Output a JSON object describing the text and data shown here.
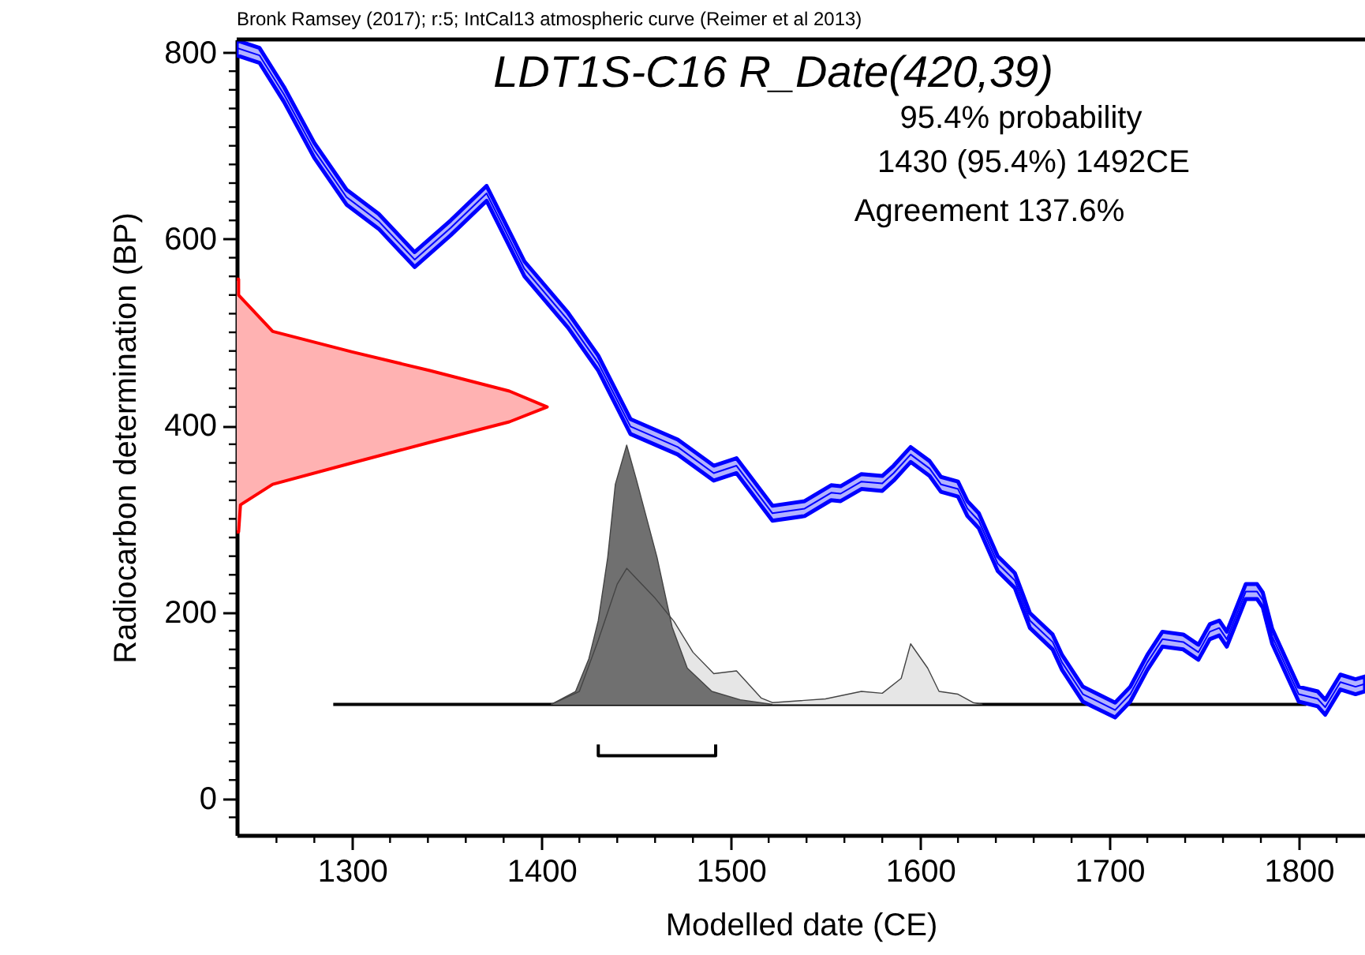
{
  "chart_data": {
    "type": "line",
    "title": "LDT1S-C16 R_Date(420,39)",
    "xlabel": "Modelled date (CE)",
    "ylabel": "Radiocarbon determination (BP)",
    "xlim": [
      1239,
      1835
    ],
    "ylim": [
      -39,
      814
    ],
    "xticks": [
      {
        "value": 1260,
        "label": null
      },
      {
        "value": 1280,
        "label": null
      },
      1300,
      {
        "value": 1320,
        "label": null
      },
      {
        "value": 1340,
        "label": null
      },
      {
        "value": 1360,
        "label": null
      },
      {
        "value": 1380,
        "label": null
      },
      1400,
      {
        "value": 1420,
        "label": null
      },
      {
        "value": 1440,
        "label": null
      },
      {
        "value": 1460,
        "label": null
      },
      {
        "value": 1480,
        "label": null
      },
      1500,
      {
        "value": 1520,
        "label": null
      },
      {
        "value": 1540,
        "label": null
      },
      {
        "value": 1560,
        "label": null
      },
      {
        "value": 1580,
        "label": null
      },
      1600,
      {
        "value": 1620,
        "label": null
      },
      {
        "value": 1640,
        "label": null
      },
      {
        "value": 1660,
        "label": null
      },
      {
        "value": 1680,
        "label": null
      },
      1700,
      {
        "value": 1720,
        "label": null
      },
      {
        "value": 1740,
        "label": null
      },
      {
        "value": 1760,
        "label": null
      },
      {
        "value": 1780,
        "label": null
      },
      1800,
      {
        "value": 1820,
        "label": null
      }
    ],
    "yticks": [
      {
        "value": -20,
        "label": null
      },
      0,
      {
        "value": 20,
        "label": null
      },
      {
        "value": 40,
        "label": null
      },
      {
        "value": 60,
        "label": null
      },
      {
        "value": 80,
        "label": null
      },
      {
        "value": 100,
        "label": null
      },
      {
        "value": 120,
        "label": null
      },
      {
        "value": 140,
        "label": null
      },
      {
        "value": 160,
        "label": null
      },
      {
        "value": 180,
        "label": null
      },
      200,
      {
        "value": 220,
        "label": null
      },
      {
        "value": 240,
        "label": null
      },
      {
        "value": 260,
        "label": null
      },
      {
        "value": 280,
        "label": null
      },
      {
        "value": 300,
        "label": null
      },
      {
        "value": 320,
        "label": null
      },
      {
        "value": 340,
        "label": null
      },
      {
        "value": 360,
        "label": null
      },
      {
        "value": 380,
        "label": null
      },
      400,
      {
        "value": 420,
        "label": null
      },
      {
        "value": 440,
        "label": null
      },
      {
        "value": 460,
        "label": null
      },
      {
        "value": 480,
        "label": null
      },
      {
        "value": 500,
        "label": null
      },
      {
        "value": 520,
        "label": null
      },
      {
        "value": 540,
        "label": null
      },
      {
        "value": 560,
        "label": null
      },
      {
        "value": 580,
        "label": null
      },
      600,
      {
        "value": 620,
        "label": null
      },
      {
        "value": 640,
        "label": null
      },
      {
        "value": 660,
        "label": null
      },
      {
        "value": 680,
        "label": null
      },
      {
        "value": 700,
        "label": null
      },
      {
        "value": 720,
        "label": null
      },
      {
        "value": 740,
        "label": null
      },
      {
        "value": 760,
        "label": null
      },
      {
        "value": 780,
        "label": null
      },
      800
    ],
    "grid": false,
    "annotations": [
      "Bronk Ramsey (2017); r:5; IntCal13 atmospheric curve (Reimer et al 2013)",
      "95.4% probability",
      "1430 (95.4%) 1492CE",
      "Agreement 137.6%"
    ],
    "series": [
      {
        "color": "#000000",
        "x": [
          1290,
          1804
        ],
        "values": [
          101,
          101
        ]
      },
      {
        "type": "area",
        "color": "#e6e6e6",
        "x": [
          1405,
          1420,
          1430,
          1440,
          1445,
          1452,
          1460,
          1470,
          1480,
          1491,
          1503,
          1516,
          1522,
          1550,
          1569,
          1580,
          1590,
          1595,
          1604,
          1610,
          1620,
          1628,
          1633
        ],
        "values": [
          101,
          115,
          170,
          230,
          247,
          232,
          215,
          190,
          157,
          134,
          137,
          108,
          103,
          107,
          115,
          113,
          129,
          166,
          140,
          115,
          112,
          103,
          101
        ]
      },
      {
        "type": "area",
        "color": "#707070",
        "x": [
          1405,
          1418,
          1425,
          1430,
          1435,
          1439,
          1445,
          1450,
          1461,
          1469,
          1477,
          1490,
          1505,
          1522
        ],
        "values": [
          101,
          115,
          150,
          191,
          259,
          337,
          379,
          343,
          259,
          184,
          140,
          115,
          106,
          101
        ]
      },
      {
        "color": "#000000",
        "x": [
          1430,
          1430,
          1492,
          1492
        ],
        "values": [
          58,
          46,
          46,
          58
        ]
      },
      {
        "type": "area",
        "color": "#ff0000",
        "x": [
          1240,
          1240,
          1258,
          1300,
          1341,
          1383,
          1403,
          1383,
          1341,
          1300,
          1258,
          1241,
          1240
        ],
        "values": [
          557,
          540,
          501,
          479,
          459,
          437,
          420,
          404,
          382,
          360,
          337,
          315,
          286
        ]
      },
      {
        "color": "#0000ff",
        "x": [
          1239,
          1251,
          1264,
          1280,
          1297,
          1314,
          1333,
          1352,
          1371,
          1391,
          1414,
          1430,
          1447,
          1472,
          1491,
          1503,
          1522,
          1539,
          1553,
          1558,
          1569,
          1580,
          1586,
          1595,
          1605,
          1611,
          1620,
          1625,
          1631,
          1641,
          1650,
          1658,
          1670,
          1675,
          1686,
          1691,
          1703,
          1711,
          1720,
          1728,
          1739,
          1747,
          1753,
          1758,
          1762,
          1772,
          1778,
          1781,
          1786,
          1800,
          1810,
          1814,
          1822,
          1830,
          1835
        ],
        "values": [
          805,
          797,
          755,
          695,
          645,
          619,
          578,
          612,
          649,
          568,
          513,
          467,
          399,
          377,
          349,
          357,
          306,
          311,
          328,
          327,
          340,
          338,
          349,
          369,
          354,
          337,
          332,
          311,
          298,
          252,
          234,
          191,
          168,
          146,
          112,
          107,
          95,
          112,
          146,
          171,
          168,
          157,
          179,
          183,
          171,
          222,
          222,
          213,
          174,
          112,
          107,
          98,
          125,
          120,
          123
        ],
        "upper": [
          813,
          805,
          763,
          703,
          653,
          627,
          586,
          620,
          657,
          576,
          521,
          475,
          407,
          385,
          357,
          365,
          314,
          319,
          336,
          335,
          348,
          346,
          357,
          377,
          362,
          345,
          340,
          319,
          306,
          260,
          242,
          199,
          176,
          154,
          120,
          115,
          103,
          120,
          154,
          179,
          176,
          165,
          187,
          191,
          179,
          230,
          230,
          221,
          182,
          120,
          115,
          106,
          133,
          128,
          131
        ],
        "lower": [
          797,
          789,
          747,
          687,
          637,
          611,
          570,
          604,
          641,
          560,
          505,
          459,
          391,
          369,
          341,
          349,
          298,
          303,
          320,
          319,
          332,
          330,
          341,
          361,
          346,
          329,
          324,
          303,
          290,
          244,
          226,
          183,
          160,
          138,
          104,
          99,
          87,
          104,
          138,
          163,
          160,
          149,
          171,
          175,
          163,
          214,
          214,
          205,
          166,
          104,
          99,
          90,
          117,
          112,
          115
        ]
      }
    ]
  }
}
